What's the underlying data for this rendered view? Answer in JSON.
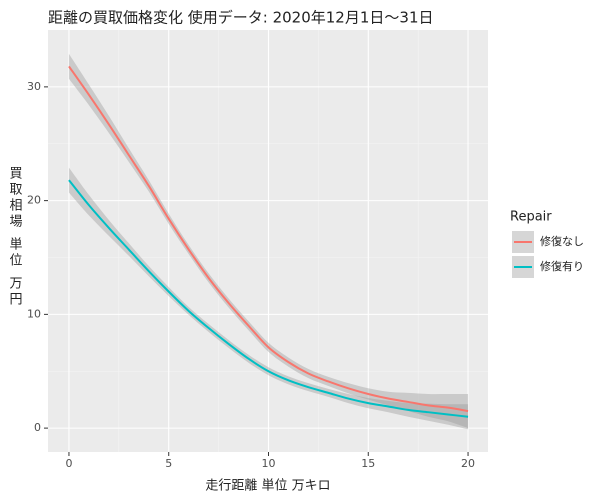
{
  "chart_data": {
    "type": "line",
    "title": "距離の買取価格変化 使用データ: 2020年12月1日～31日",
    "x_label": "走行距離 単位 万キロ",
    "y_label": "買取相場 単位 万円",
    "legend_title": "Repair",
    "x": [
      0,
      1,
      2,
      3,
      4,
      5,
      6,
      7,
      8,
      9,
      10,
      11,
      12,
      13,
      14,
      15,
      16,
      17,
      18,
      19,
      20
    ],
    "series": [
      {
        "name": "修復なし",
        "color": "#f8766d",
        "values": [
          31.8,
          29.3,
          26.7,
          24.0,
          21.3,
          18.4,
          15.7,
          13.2,
          11.0,
          9.0,
          7.1,
          5.8,
          4.8,
          4.1,
          3.5,
          3.0,
          2.6,
          2.3,
          2.0,
          1.8,
          1.5
        ],
        "lower": [
          30.7,
          28.4,
          25.95,
          23.4,
          20.8,
          17.95,
          15.3,
          12.8,
          10.6,
          8.6,
          6.7,
          5.4,
          4.4,
          3.7,
          3.05,
          2.5,
          2.0,
          1.5,
          1.0,
          0.6,
          0.0
        ],
        "upper": [
          32.9,
          30.2,
          27.45,
          24.6,
          21.8,
          18.85,
          16.1,
          13.6,
          11.4,
          9.4,
          7.5,
          6.2,
          5.2,
          4.5,
          3.95,
          3.5,
          3.2,
          3.1,
          3.0,
          3.0,
          3.0
        ]
      },
      {
        "name": "修復有り",
        "color": "#00bfc4",
        "values": [
          21.8,
          19.6,
          17.6,
          15.7,
          13.8,
          12.0,
          10.3,
          8.8,
          7.4,
          6.1,
          5.0,
          4.2,
          3.6,
          3.1,
          2.6,
          2.2,
          1.9,
          1.6,
          1.4,
          1.2,
          1.0
        ],
        "lower": [
          20.7,
          18.7,
          16.9,
          15.15,
          13.35,
          11.6,
          9.95,
          8.45,
          7.05,
          5.75,
          4.65,
          3.85,
          3.25,
          2.75,
          2.2,
          1.75,
          1.4,
          1.0,
          0.65,
          0.3,
          -0.1
        ],
        "upper": [
          22.9,
          20.5,
          18.3,
          16.25,
          14.25,
          12.4,
          10.65,
          9.15,
          7.75,
          6.45,
          5.35,
          4.55,
          3.95,
          3.45,
          3.0,
          2.65,
          2.4,
          2.2,
          2.15,
          2.1,
          2.1
        ]
      }
    ],
    "band_color": "#999999",
    "xlim": [
      -1.05,
      21
    ],
    "ylim": [
      -2.1,
      35
    ],
    "xticks": [
      0,
      5,
      10,
      15,
      20
    ],
    "yticks": [
      0,
      10,
      20,
      30
    ],
    "grid": true,
    "legend": "right"
  }
}
